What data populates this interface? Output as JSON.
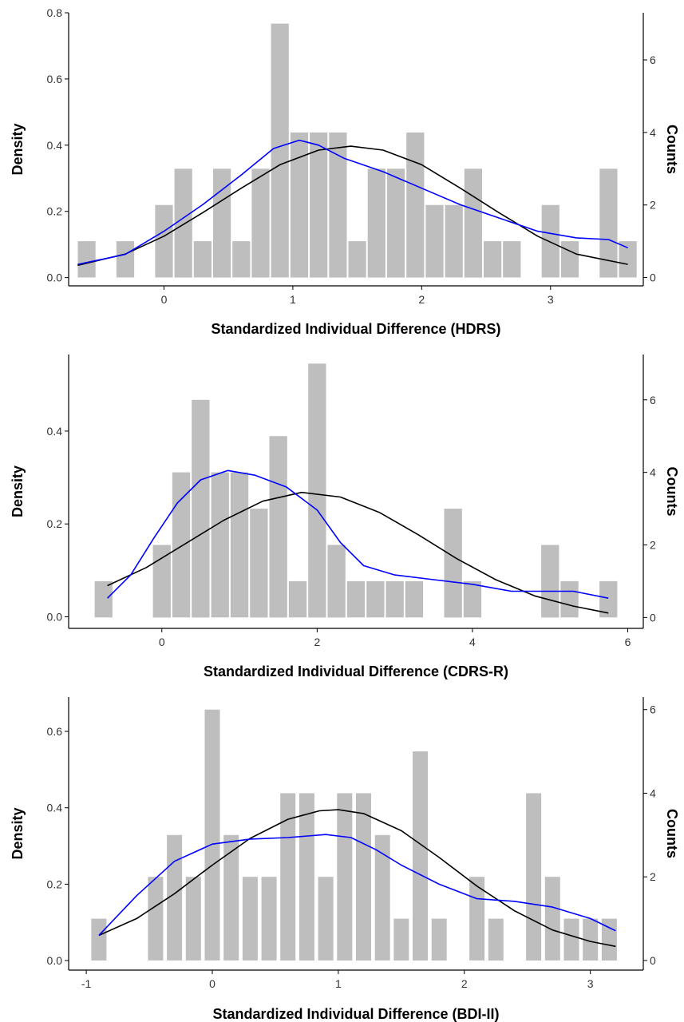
{
  "colors": {
    "bar": "#bebebe",
    "density_curve": "#0000ff",
    "normal_curve": "#000000",
    "axis": "#000000"
  },
  "chart_data": [
    {
      "type": "bar",
      "xlabel": "Standardized Individual Difference (HDRS)",
      "ylabel_left": "Density",
      "ylabel_right": "Counts",
      "xlim": [
        -0.74,
        3.72
      ],
      "xticks": [
        0,
        1,
        2,
        3
      ],
      "ylim_density": [
        -0.025,
        0.8
      ],
      "yticks_density": [
        0.0,
        0.2,
        0.4,
        0.6,
        0.8
      ],
      "ylim_counts": [
        -0.23,
        7.3
      ],
      "yticks_counts": [
        0,
        2,
        4,
        6
      ],
      "bin_width": 0.15,
      "bins": [
        {
          "x": -0.6,
          "count": 1
        },
        {
          "x": -0.3,
          "count": 1
        },
        {
          "x": 0.0,
          "count": 2
        },
        {
          "x": 0.15,
          "count": 3
        },
        {
          "x": 0.3,
          "count": 1
        },
        {
          "x": 0.45,
          "count": 3
        },
        {
          "x": 0.6,
          "count": 1
        },
        {
          "x": 0.75,
          "count": 3
        },
        {
          "x": 0.9,
          "count": 7
        },
        {
          "x": 1.05,
          "count": 4
        },
        {
          "x": 1.2,
          "count": 4
        },
        {
          "x": 1.35,
          "count": 4
        },
        {
          "x": 1.5,
          "count": 1
        },
        {
          "x": 1.65,
          "count": 3
        },
        {
          "x": 1.8,
          "count": 3
        },
        {
          "x": 1.95,
          "count": 4
        },
        {
          "x": 2.1,
          "count": 2
        },
        {
          "x": 2.25,
          "count": 2
        },
        {
          "x": 2.4,
          "count": 3
        },
        {
          "x": 2.55,
          "count": 1
        },
        {
          "x": 2.7,
          "count": 1
        },
        {
          "x": 3.0,
          "count": 2
        },
        {
          "x": 3.15,
          "count": 1
        },
        {
          "x": 3.45,
          "count": 3
        },
        {
          "x": 3.6,
          "count": 1
        }
      ],
      "density_curve": [
        {
          "x": -0.67,
          "y": 0.04
        },
        {
          "x": -0.3,
          "y": 0.07
        },
        {
          "x": 0.0,
          "y": 0.14
        },
        {
          "x": 0.3,
          "y": 0.22
        },
        {
          "x": 0.6,
          "y": 0.31
        },
        {
          "x": 0.85,
          "y": 0.39
        },
        {
          "x": 1.05,
          "y": 0.415
        },
        {
          "x": 1.2,
          "y": 0.4
        },
        {
          "x": 1.4,
          "y": 0.36
        },
        {
          "x": 1.7,
          "y": 0.32
        },
        {
          "x": 2.0,
          "y": 0.27
        },
        {
          "x": 2.3,
          "y": 0.22
        },
        {
          "x": 2.6,
          "y": 0.18
        },
        {
          "x": 2.9,
          "y": 0.14
        },
        {
          "x": 3.2,
          "y": 0.12
        },
        {
          "x": 3.45,
          "y": 0.115
        },
        {
          "x": 3.6,
          "y": 0.09
        }
      ],
      "normal_curve": [
        {
          "x": -0.67,
          "y": 0.037
        },
        {
          "x": -0.3,
          "y": 0.071
        },
        {
          "x": 0.0,
          "y": 0.125
        },
        {
          "x": 0.3,
          "y": 0.196
        },
        {
          "x": 0.6,
          "y": 0.27
        },
        {
          "x": 0.9,
          "y": 0.341
        },
        {
          "x": 1.2,
          "y": 0.385
        },
        {
          "x": 1.45,
          "y": 0.397
        },
        {
          "x": 1.7,
          "y": 0.385
        },
        {
          "x": 2.0,
          "y": 0.341
        },
        {
          "x": 2.3,
          "y": 0.27
        },
        {
          "x": 2.6,
          "y": 0.196
        },
        {
          "x": 2.9,
          "y": 0.125
        },
        {
          "x": 3.2,
          "y": 0.071
        },
        {
          "x": 3.6,
          "y": 0.04
        }
      ]
    },
    {
      "type": "bar",
      "xlabel": "Standardized Individual Difference (CDRS-R)",
      "ylabel_left": "Density",
      "ylabel_right": "Counts",
      "xlim": [
        -1.2,
        6.2
      ],
      "xticks": [
        0,
        2,
        4,
        6
      ],
      "ylim_density": [
        -0.025,
        0.565
      ],
      "yticks_density": [
        0.0,
        0.2,
        0.4
      ],
      "ylim_counts": [
        -0.3,
        7.25
      ],
      "yticks_counts": [
        0,
        2,
        4,
        6
      ],
      "bin_width": 0.25,
      "bins": [
        {
          "x": -0.75,
          "count": 1
        },
        {
          "x": 0.0,
          "count": 2
        },
        {
          "x": 0.25,
          "count": 4
        },
        {
          "x": 0.5,
          "count": 6
        },
        {
          "x": 0.75,
          "count": 4
        },
        {
          "x": 1.0,
          "count": 4
        },
        {
          "x": 1.25,
          "count": 3
        },
        {
          "x": 1.5,
          "count": 5
        },
        {
          "x": 1.75,
          "count": 1
        },
        {
          "x": 2.0,
          "count": 7
        },
        {
          "x": 2.25,
          "count": 2
        },
        {
          "x": 2.5,
          "count": 1
        },
        {
          "x": 2.75,
          "count": 1
        },
        {
          "x": 3.0,
          "count": 1
        },
        {
          "x": 3.25,
          "count": 1
        },
        {
          "x": 3.75,
          "count": 3
        },
        {
          "x": 4.0,
          "count": 1
        },
        {
          "x": 5.0,
          "count": 2
        },
        {
          "x": 5.25,
          "count": 1
        },
        {
          "x": 5.75,
          "count": 1
        }
      ],
      "density_curve": [
        {
          "x": -0.7,
          "y": 0.04
        },
        {
          "x": -0.4,
          "y": 0.09
        },
        {
          "x": -0.1,
          "y": 0.17
        },
        {
          "x": 0.2,
          "y": 0.245
        },
        {
          "x": 0.5,
          "y": 0.295
        },
        {
          "x": 0.85,
          "y": 0.315
        },
        {
          "x": 1.2,
          "y": 0.305
        },
        {
          "x": 1.6,
          "y": 0.28
        },
        {
          "x": 2.0,
          "y": 0.23
        },
        {
          "x": 2.3,
          "y": 0.16
        },
        {
          "x": 2.6,
          "y": 0.11
        },
        {
          "x": 3.0,
          "y": 0.09
        },
        {
          "x": 3.5,
          "y": 0.08
        },
        {
          "x": 4.0,
          "y": 0.07
        },
        {
          "x": 4.5,
          "y": 0.055
        },
        {
          "x": 5.0,
          "y": 0.055
        },
        {
          "x": 5.3,
          "y": 0.055
        },
        {
          "x": 5.75,
          "y": 0.04
        }
      ],
      "normal_curve": [
        {
          "x": -0.7,
          "y": 0.067
        },
        {
          "x": -0.2,
          "y": 0.106
        },
        {
          "x": 0.3,
          "y": 0.157
        },
        {
          "x": 0.8,
          "y": 0.208
        },
        {
          "x": 1.3,
          "y": 0.249
        },
        {
          "x": 1.8,
          "y": 0.268
        },
        {
          "x": 2.3,
          "y": 0.258
        },
        {
          "x": 2.8,
          "y": 0.225
        },
        {
          "x": 3.3,
          "y": 0.177
        },
        {
          "x": 3.8,
          "y": 0.125
        },
        {
          "x": 4.3,
          "y": 0.08
        },
        {
          "x": 4.8,
          "y": 0.045
        },
        {
          "x": 5.3,
          "y": 0.023
        },
        {
          "x": 5.75,
          "y": 0.008
        }
      ]
    },
    {
      "type": "bar",
      "xlabel": "Standardized Individual Difference (BDI-II)",
      "ylabel_left": "Density",
      "ylabel_right": "Counts",
      "xlim": [
        -1.14,
        3.42
      ],
      "xticks": [
        -1,
        0,
        1,
        2,
        3
      ],
      "ylim_density": [
        -0.025,
        0.69
      ],
      "yticks_density": [
        0.0,
        0.2,
        0.4,
        0.6
      ],
      "ylim_counts": [
        -0.23,
        6.3
      ],
      "yticks_counts": [
        0,
        2,
        4,
        6
      ],
      "bin_width": 0.133,
      "bins": [
        {
          "x": -0.9,
          "count": 1
        },
        {
          "x": -0.45,
          "count": 2
        },
        {
          "x": -0.3,
          "count": 3
        },
        {
          "x": -0.15,
          "count": 2
        },
        {
          "x": 0.0,
          "count": 6
        },
        {
          "x": 0.15,
          "count": 3
        },
        {
          "x": 0.3,
          "count": 2
        },
        {
          "x": 0.45,
          "count": 2
        },
        {
          "x": 0.6,
          "count": 4
        },
        {
          "x": 0.75,
          "count": 4
        },
        {
          "x": 0.9,
          "count": 2
        },
        {
          "x": 1.05,
          "count": 4
        },
        {
          "x": 1.2,
          "count": 4
        },
        {
          "x": 1.35,
          "count": 3
        },
        {
          "x": 1.5,
          "count": 1
        },
        {
          "x": 1.65,
          "count": 5
        },
        {
          "x": 1.8,
          "count": 1
        },
        {
          "x": 2.1,
          "count": 2
        },
        {
          "x": 2.25,
          "count": 1
        },
        {
          "x": 2.55,
          "count": 4
        },
        {
          "x": 2.7,
          "count": 2
        },
        {
          "x": 2.85,
          "count": 1
        },
        {
          "x": 3.0,
          "count": 1
        },
        {
          "x": 3.15,
          "count": 1
        }
      ],
      "density_curve": [
        {
          "x": -0.9,
          "y": 0.066
        },
        {
          "x": -0.6,
          "y": 0.17
        },
        {
          "x": -0.3,
          "y": 0.26
        },
        {
          "x": 0.0,
          "y": 0.305
        },
        {
          "x": 0.3,
          "y": 0.318
        },
        {
          "x": 0.6,
          "y": 0.322
        },
        {
          "x": 0.9,
          "y": 0.33
        },
        {
          "x": 1.1,
          "y": 0.322
        },
        {
          "x": 1.3,
          "y": 0.29
        },
        {
          "x": 1.5,
          "y": 0.25
        },
        {
          "x": 1.8,
          "y": 0.2
        },
        {
          "x": 2.1,
          "y": 0.162
        },
        {
          "x": 2.4,
          "y": 0.155
        },
        {
          "x": 2.7,
          "y": 0.14
        },
        {
          "x": 3.0,
          "y": 0.11
        },
        {
          "x": 3.2,
          "y": 0.078
        }
      ],
      "normal_curve": [
        {
          "x": -0.9,
          "y": 0.066
        },
        {
          "x": -0.6,
          "y": 0.11
        },
        {
          "x": -0.3,
          "y": 0.175
        },
        {
          "x": 0.0,
          "y": 0.25
        },
        {
          "x": 0.3,
          "y": 0.32
        },
        {
          "x": 0.6,
          "y": 0.37
        },
        {
          "x": 0.85,
          "y": 0.392
        },
        {
          "x": 1.0,
          "y": 0.395
        },
        {
          "x": 1.2,
          "y": 0.385
        },
        {
          "x": 1.5,
          "y": 0.34
        },
        {
          "x": 1.8,
          "y": 0.27
        },
        {
          "x": 2.1,
          "y": 0.195
        },
        {
          "x": 2.4,
          "y": 0.13
        },
        {
          "x": 2.7,
          "y": 0.08
        },
        {
          "x": 3.0,
          "y": 0.05
        },
        {
          "x": 3.2,
          "y": 0.037
        }
      ]
    }
  ]
}
